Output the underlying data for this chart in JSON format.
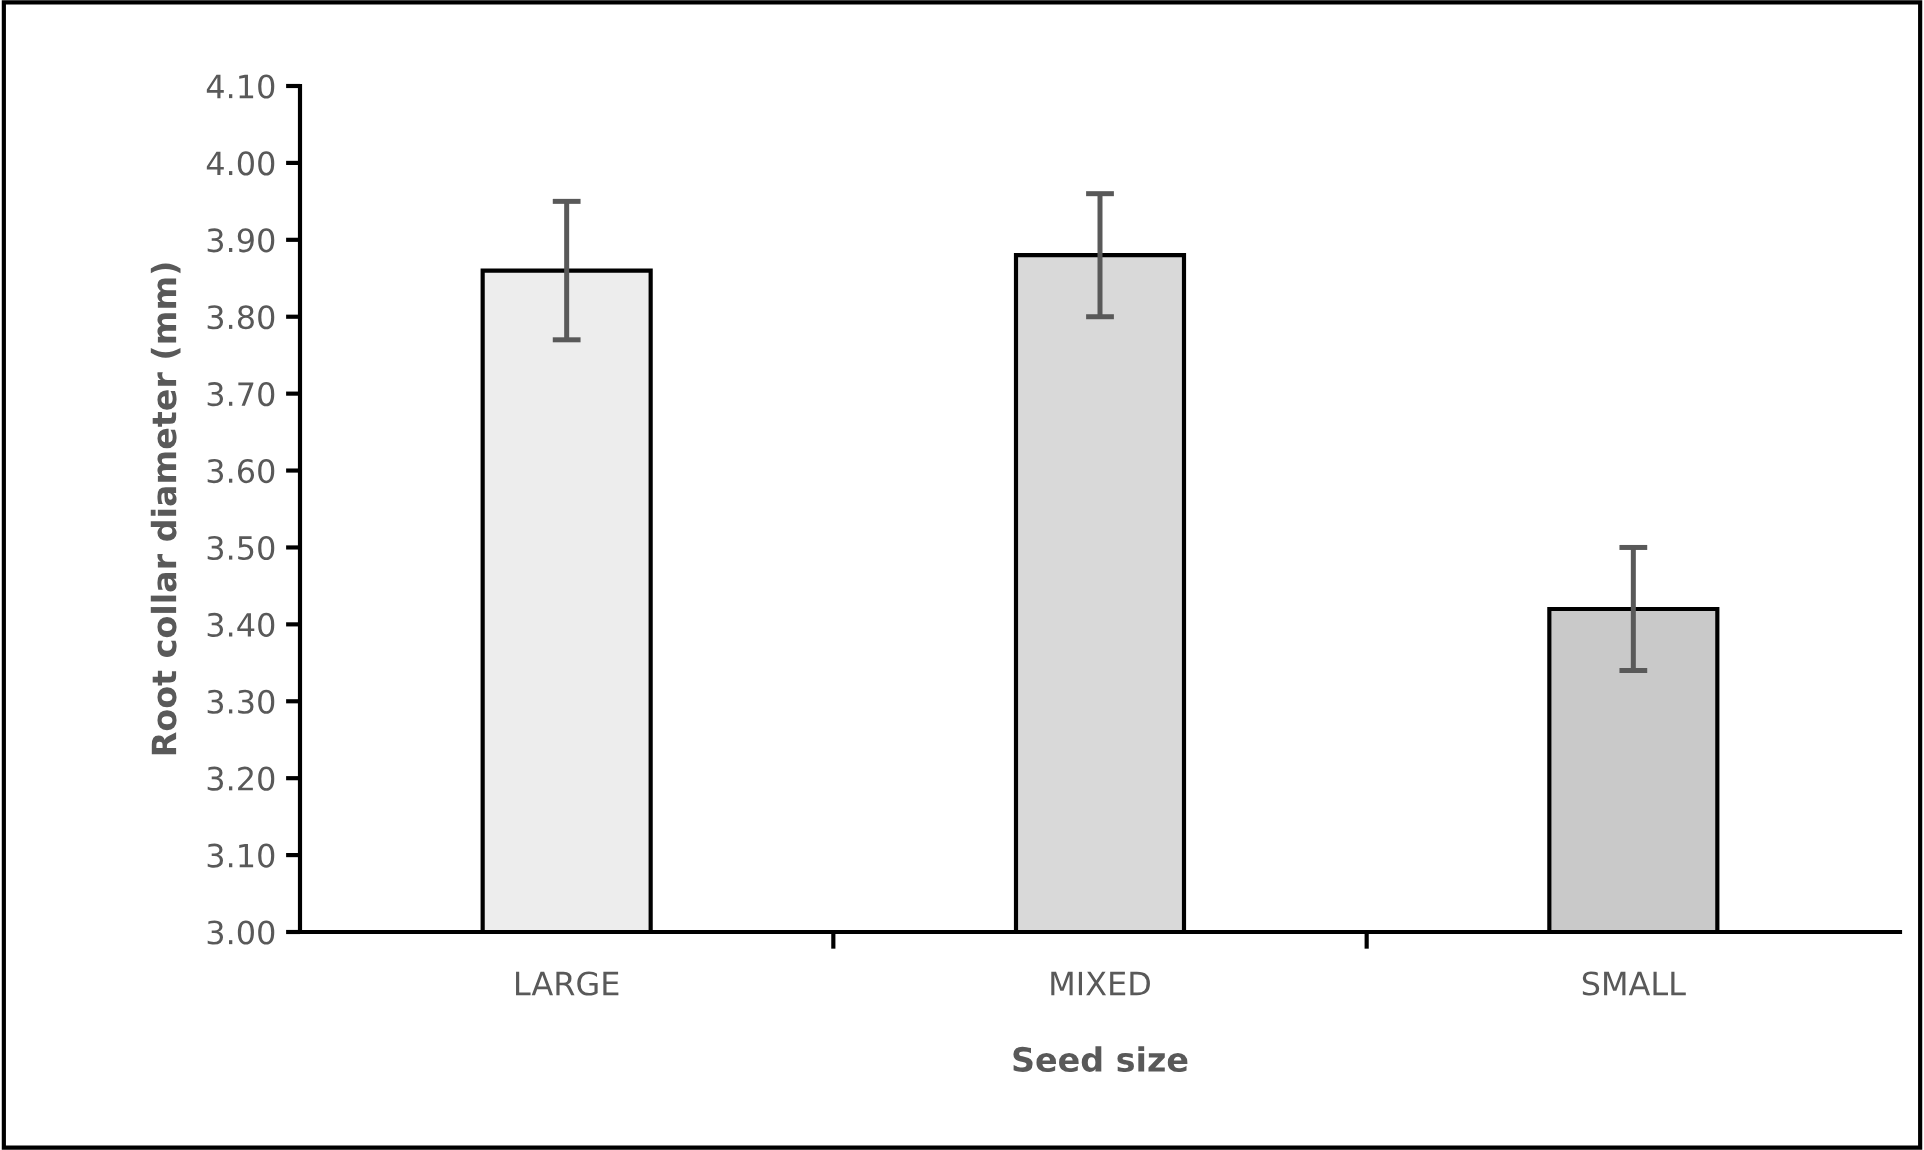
{
  "chart_data": {
    "type": "bar",
    "xlabel": "Seed size",
    "ylabel": "Root collar diameter (mm)",
    "categories": [
      "LARGE",
      "MIXED",
      "SMALL"
    ],
    "values": [
      3.86,
      3.88,
      3.42
    ],
    "errors": [
      0.09,
      0.08,
      0.08
    ],
    "colors": [
      "#ededed",
      "#d9d9d9",
      "#c9c9c9"
    ],
    "ylim": [
      3.0,
      4.1
    ],
    "yticks": [
      {
        "value": 3.0,
        "label": "3.00"
      },
      {
        "value": 3.1,
        "label": "3.10"
      },
      {
        "value": 3.2,
        "label": "3.20"
      },
      {
        "value": 3.3,
        "label": "3.30"
      },
      {
        "value": 3.4,
        "label": "3.40"
      },
      {
        "value": 3.5,
        "label": "3.50"
      },
      {
        "value": 3.6,
        "label": "3.60"
      },
      {
        "value": 3.7,
        "label": "3.70"
      },
      {
        "value": 3.8,
        "label": "3.80"
      },
      {
        "value": 3.9,
        "label": "3.90"
      },
      {
        "value": 4.0,
        "label": "4.00"
      },
      {
        "value": 4.1,
        "label": "4.10"
      }
    ],
    "grid": false
  }
}
